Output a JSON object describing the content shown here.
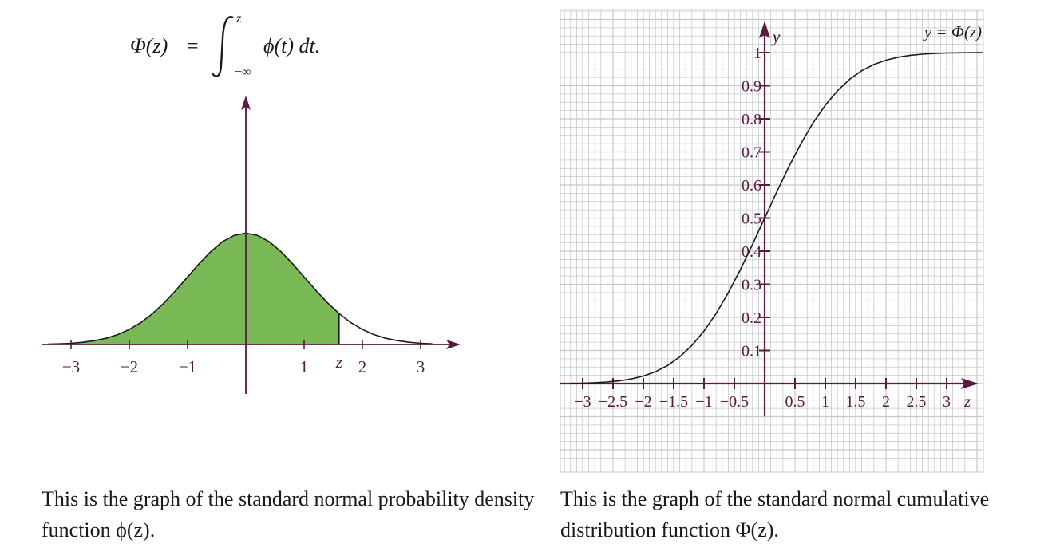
{
  "formula": {
    "lhs": "Φ(z)",
    "equals": "=",
    "upper_limit": "z",
    "lower_limit": "−∞",
    "integrand": "ϕ(t) dt."
  },
  "colors": {
    "axis": "#5a1a40",
    "fill": "#78b855",
    "curve": "#1a1a1a",
    "grid": "#c8c8c8"
  },
  "chart_data": [
    {
      "type": "area",
      "function": "standard normal probability density ϕ(z)",
      "x": [
        -3.4,
        -3.2,
        -3.0,
        -2.8,
        -2.6,
        -2.4,
        -2.2,
        -2.0,
        -1.8,
        -1.6,
        -1.4,
        -1.2,
        -1.0,
        -0.8,
        -0.6,
        -0.4,
        -0.2,
        0.0,
        0.2,
        0.4,
        0.6,
        0.8,
        1.0,
        1.2,
        1.4,
        1.6,
        1.8,
        2.0,
        2.2,
        2.4,
        2.6,
        2.8,
        3.0,
        3.2
      ],
      "y": [
        0.0012,
        0.0024,
        0.0044,
        0.0079,
        0.0136,
        0.0224,
        0.0355,
        0.054,
        0.079,
        0.1109,
        0.1497,
        0.1942,
        0.242,
        0.2897,
        0.3332,
        0.3683,
        0.391,
        0.3989,
        0.391,
        0.3683,
        0.3332,
        0.2897,
        0.242,
        0.1942,
        0.1497,
        0.1109,
        0.079,
        0.054,
        0.0355,
        0.0224,
        0.0136,
        0.0079,
        0.0044,
        0.0024
      ],
      "shaded_to": 1.6,
      "shaded_label": "z",
      "xticks": [
        -3,
        -2,
        -1,
        1,
        2,
        3
      ],
      "xtick_labels": [
        "−3",
        "−2",
        "−1",
        "1",
        "2",
        "3"
      ],
      "xlim": [
        -3.5,
        3.5
      ]
    },
    {
      "type": "line",
      "title": "y = Φ(z)",
      "xlabel": "z",
      "ylabel": "y",
      "x": [
        -3.2,
        -3.0,
        -2.8,
        -2.6,
        -2.4,
        -2.2,
        -2.0,
        -1.8,
        -1.6,
        -1.4,
        -1.2,
        -1.0,
        -0.8,
        -0.6,
        -0.4,
        -0.2,
        0.0,
        0.2,
        0.4,
        0.6,
        0.8,
        1.0,
        1.2,
        1.4,
        1.6,
        1.8,
        2.0,
        2.2,
        2.4,
        2.6,
        2.8,
        3.0,
        3.2,
        3.5
      ],
      "y": [
        0.0007,
        0.0013,
        0.0026,
        0.0047,
        0.0082,
        0.0139,
        0.0228,
        0.0359,
        0.0548,
        0.0808,
        0.1151,
        0.1587,
        0.2119,
        0.2743,
        0.3446,
        0.4207,
        0.5,
        0.5793,
        0.6554,
        0.7257,
        0.7881,
        0.8413,
        0.8849,
        0.9192,
        0.9452,
        0.9641,
        0.9772,
        0.9861,
        0.9918,
        0.9953,
        0.9974,
        0.9987,
        0.9993,
        0.9998
      ],
      "xticks": [
        -3,
        -2.5,
        -2,
        -1.5,
        -1,
        -0.5,
        0.5,
        1,
        1.5,
        2,
        2.5,
        3
      ],
      "xtick_labels": [
        "−3",
        "−2.5",
        "−2",
        "−1.5",
        "−1",
        "−0.5",
        "0.5",
        "1",
        "1.5",
        "2",
        "2.5",
        "3"
      ],
      "yticks": [
        0.1,
        0.2,
        0.3,
        0.4,
        0.5,
        0.6,
        0.7,
        0.8,
        0.9,
        1
      ],
      "ytick_labels": [
        "0.1",
        "0.2",
        "0.3",
        "0.4",
        "0.5",
        "0.6",
        "0.7",
        "0.8",
        "0.9",
        "1"
      ],
      "xlim": [
        -3.3,
        3.55
      ],
      "ylim": [
        -0.3,
        1.13
      ],
      "grid": true
    }
  ],
  "captions": {
    "left": "This is the graph of the standard normal probability density function ϕ(z).",
    "right": "This is the graph of the standard normal cumulative distribution function Φ(z)."
  }
}
